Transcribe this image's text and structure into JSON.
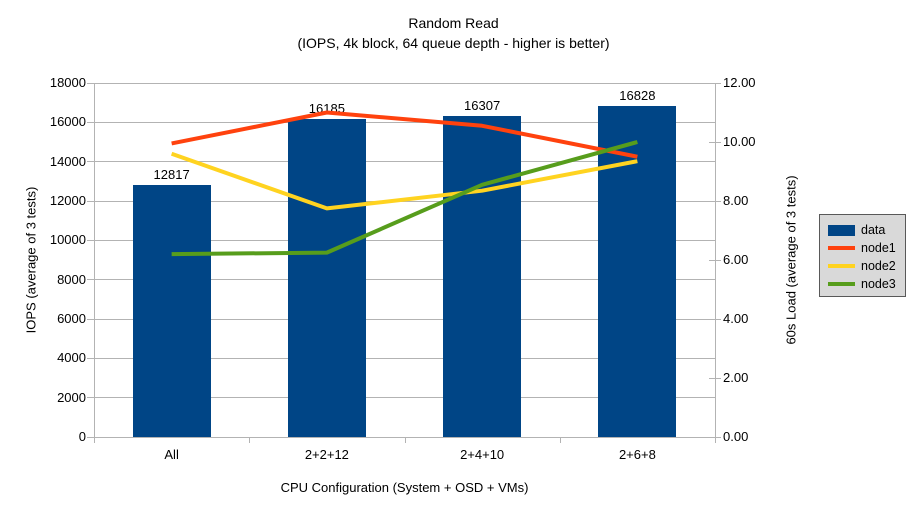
{
  "chart_data": {
    "type": "bar+line combo",
    "title": "Random Read",
    "subtitle": "(IOPS, 4k block, 64 queue depth - higher is better)",
    "categories": [
      "All",
      "2+2+12",
      "2+4+10",
      "2+6+8"
    ],
    "bar_series": {
      "name": "data",
      "axis": "left",
      "color": "#004586",
      "values": [
        12817,
        16185,
        16307,
        16828
      ],
      "data_labels": [
        "12817",
        "16185",
        "16307",
        "16828"
      ]
    },
    "line_series": [
      {
        "name": "node1",
        "axis": "right",
        "color": "#ff420e",
        "values": [
          9.95,
          11.0,
          10.55,
          9.5
        ]
      },
      {
        "name": "node2",
        "axis": "right",
        "color": "#ffd320",
        "values": [
          9.6,
          7.75,
          8.35,
          9.35
        ]
      },
      {
        "name": "node3",
        "axis": "right",
        "color": "#579d1c",
        "values": [
          6.2,
          6.25,
          8.55,
          10.0
        ]
      }
    ],
    "left_axis": {
      "label": "IOPS (average of 3 tests)",
      "min": 0,
      "max": 18000,
      "step": 2000,
      "ticks": [
        "18000",
        "16000",
        "14000",
        "12000",
        "10000",
        "8000",
        "6000",
        "4000",
        "2000",
        "0"
      ]
    },
    "right_axis": {
      "label": "60s Load (average of 3 tests)",
      "min": 0,
      "max": 12,
      "step": 2,
      "ticks": [
        "12.00",
        "10.00",
        "8.00",
        "6.00",
        "4.00",
        "2.00",
        "0.00"
      ]
    },
    "x_axis": {
      "label": "CPU Configuration (System + OSD + VMs)"
    },
    "legend": {
      "position": "right",
      "entries": [
        "data",
        "node1",
        "node2",
        "node3"
      ]
    },
    "grid": "horizontal gridlines every 2000 IOPS",
    "colors": {
      "grid": "#b3b3b3",
      "axis": "#b3b3b3",
      "text": "#000000",
      "legend_bg": "#d9d9d9",
      "legend_border": "#595959",
      "background": "#ffffff"
    }
  }
}
